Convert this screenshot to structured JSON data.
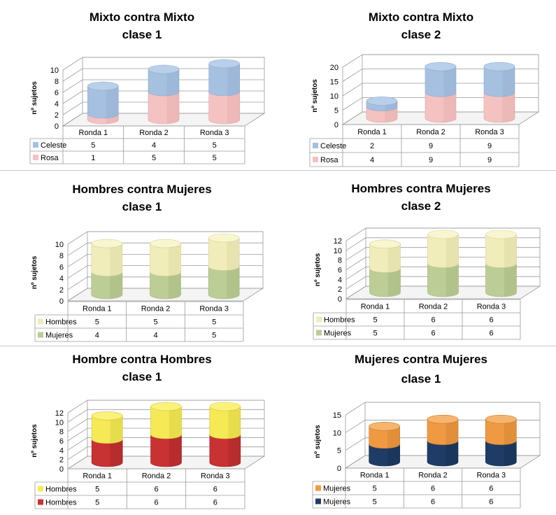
{
  "chart_data": [
    {
      "type": "bar",
      "stacked": true,
      "title": [
        "Mixto contra Mixto",
        "clase 1"
      ],
      "ylabel": "nº sujetos",
      "ylim": [
        0,
        10
      ],
      "yticks": [
        0,
        2,
        4,
        6,
        8,
        10
      ],
      "categories": [
        "Ronda 1",
        "Ronda 2",
        "Ronda 3"
      ],
      "series": [
        {
          "name": "Celeste",
          "values": [
            5,
            4,
            5
          ],
          "top": "#b9d0ea",
          "side": "#a6c1e0",
          "dark": "#8ea9cb"
        },
        {
          "name": "Rosa",
          "values": [
            1,
            5,
            5
          ],
          "top": "#f9d4d4",
          "side": "#f5c2c2",
          "dark": "#dca6a6"
        }
      ]
    },
    {
      "type": "bar",
      "stacked": true,
      "title": [
        "Mixto contra Mixto",
        "clase 2"
      ],
      "ylabel": "nº sujetos",
      "ylim": [
        0,
        20
      ],
      "yticks": [
        0,
        5,
        10,
        15,
        20
      ],
      "categories": [
        "Ronda 1",
        "Ronda 2",
        "Ronda 3"
      ],
      "series": [
        {
          "name": "Celeste",
          "values": [
            2,
            9,
            9
          ],
          "top": "#b9d0ea",
          "side": "#a6c1e0",
          "dark": "#8ea9cb"
        },
        {
          "name": "Rosa",
          "values": [
            4,
            9,
            9
          ],
          "top": "#f9d4d4",
          "side": "#f5c2c2",
          "dark": "#dca6a6"
        }
      ]
    },
    {
      "type": "bar",
      "stacked": true,
      "title": [
        "Hombres contra Mujeres",
        "clase 1"
      ],
      "ylabel": "nº sujetos",
      "ylim": [
        0,
        10
      ],
      "yticks": [
        0,
        2,
        4,
        6,
        8,
        10
      ],
      "categories": [
        "Ronda 1",
        "Ronda 2",
        "Ronda 3"
      ],
      "series": [
        {
          "name": "Hombres",
          "values": [
            5,
            5,
            5
          ],
          "top": "#f8f6cf",
          "side": "#f0edbb",
          "dark": "#d4d09c"
        },
        {
          "name": "Mujeres",
          "values": [
            4,
            4,
            5
          ],
          "top": "#cfdcae",
          "side": "#bccd95",
          "dark": "#9fb277"
        }
      ]
    },
    {
      "type": "bar",
      "stacked": true,
      "title": [
        "Hombres contra Mujeres",
        "clase 2"
      ],
      "ylabel": "nº sujetos",
      "ylim": [
        0,
        12
      ],
      "yticks": [
        0,
        2,
        4,
        6,
        8,
        10,
        12
      ],
      "categories": [
        "Ronda 1",
        "Ronda 2",
        "Ronda 3"
      ],
      "series": [
        {
          "name": "Hombres",
          "values": [
            5,
            6,
            6
          ],
          "top": "#f8f6cf",
          "side": "#f0edbb",
          "dark": "#d4d09c"
        },
        {
          "name": "Mujeres",
          "values": [
            5,
            6,
            6
          ],
          "top": "#cfdcae",
          "side": "#bccd95",
          "dark": "#9fb277"
        }
      ]
    },
    {
      "type": "bar",
      "stacked": true,
      "title": [
        "Hombre contra Hombres",
        "clase 1"
      ],
      "ylabel": "nº sujetos",
      "ylim": [
        0,
        12
      ],
      "yticks": [
        0,
        2,
        4,
        6,
        8,
        10,
        12
      ],
      "categories": [
        "Ronda 1",
        "Ronda 2",
        "Ronda 3"
      ],
      "series": [
        {
          "name": "Hombres",
          "values": [
            5,
            6,
            6
          ],
          "top": "#fbf27a",
          "side": "#f5ea56",
          "dark": "#cfc23a"
        },
        {
          "name": "Hombres",
          "values": [
            5,
            6,
            6
          ],
          "top": "#e05a5a",
          "side": "#c93232",
          "dark": "#962222"
        }
      ]
    },
    {
      "type": "bar",
      "stacked": true,
      "title": [
        "Mujeres contra Mujeres",
        "clase 1"
      ],
      "ylabel": "nº sujetos",
      "ylim": [
        0,
        15
      ],
      "yticks": [
        0,
        5,
        10,
        15
      ],
      "categories": [
        "Ronda 1",
        "Ronda 2",
        "Ronda 3"
      ],
      "series": [
        {
          "name": "Mujeres",
          "values": [
            5,
            6,
            6
          ],
          "top": "#f6b56f",
          "side": "#ef9a43",
          "dark": "#c97a2c"
        },
        {
          "name": "Mujeres",
          "values": [
            5,
            6,
            6
          ],
          "top": "#3d5f8e",
          "side": "#1f3c66",
          "dark": "#142a4a"
        }
      ]
    }
  ]
}
